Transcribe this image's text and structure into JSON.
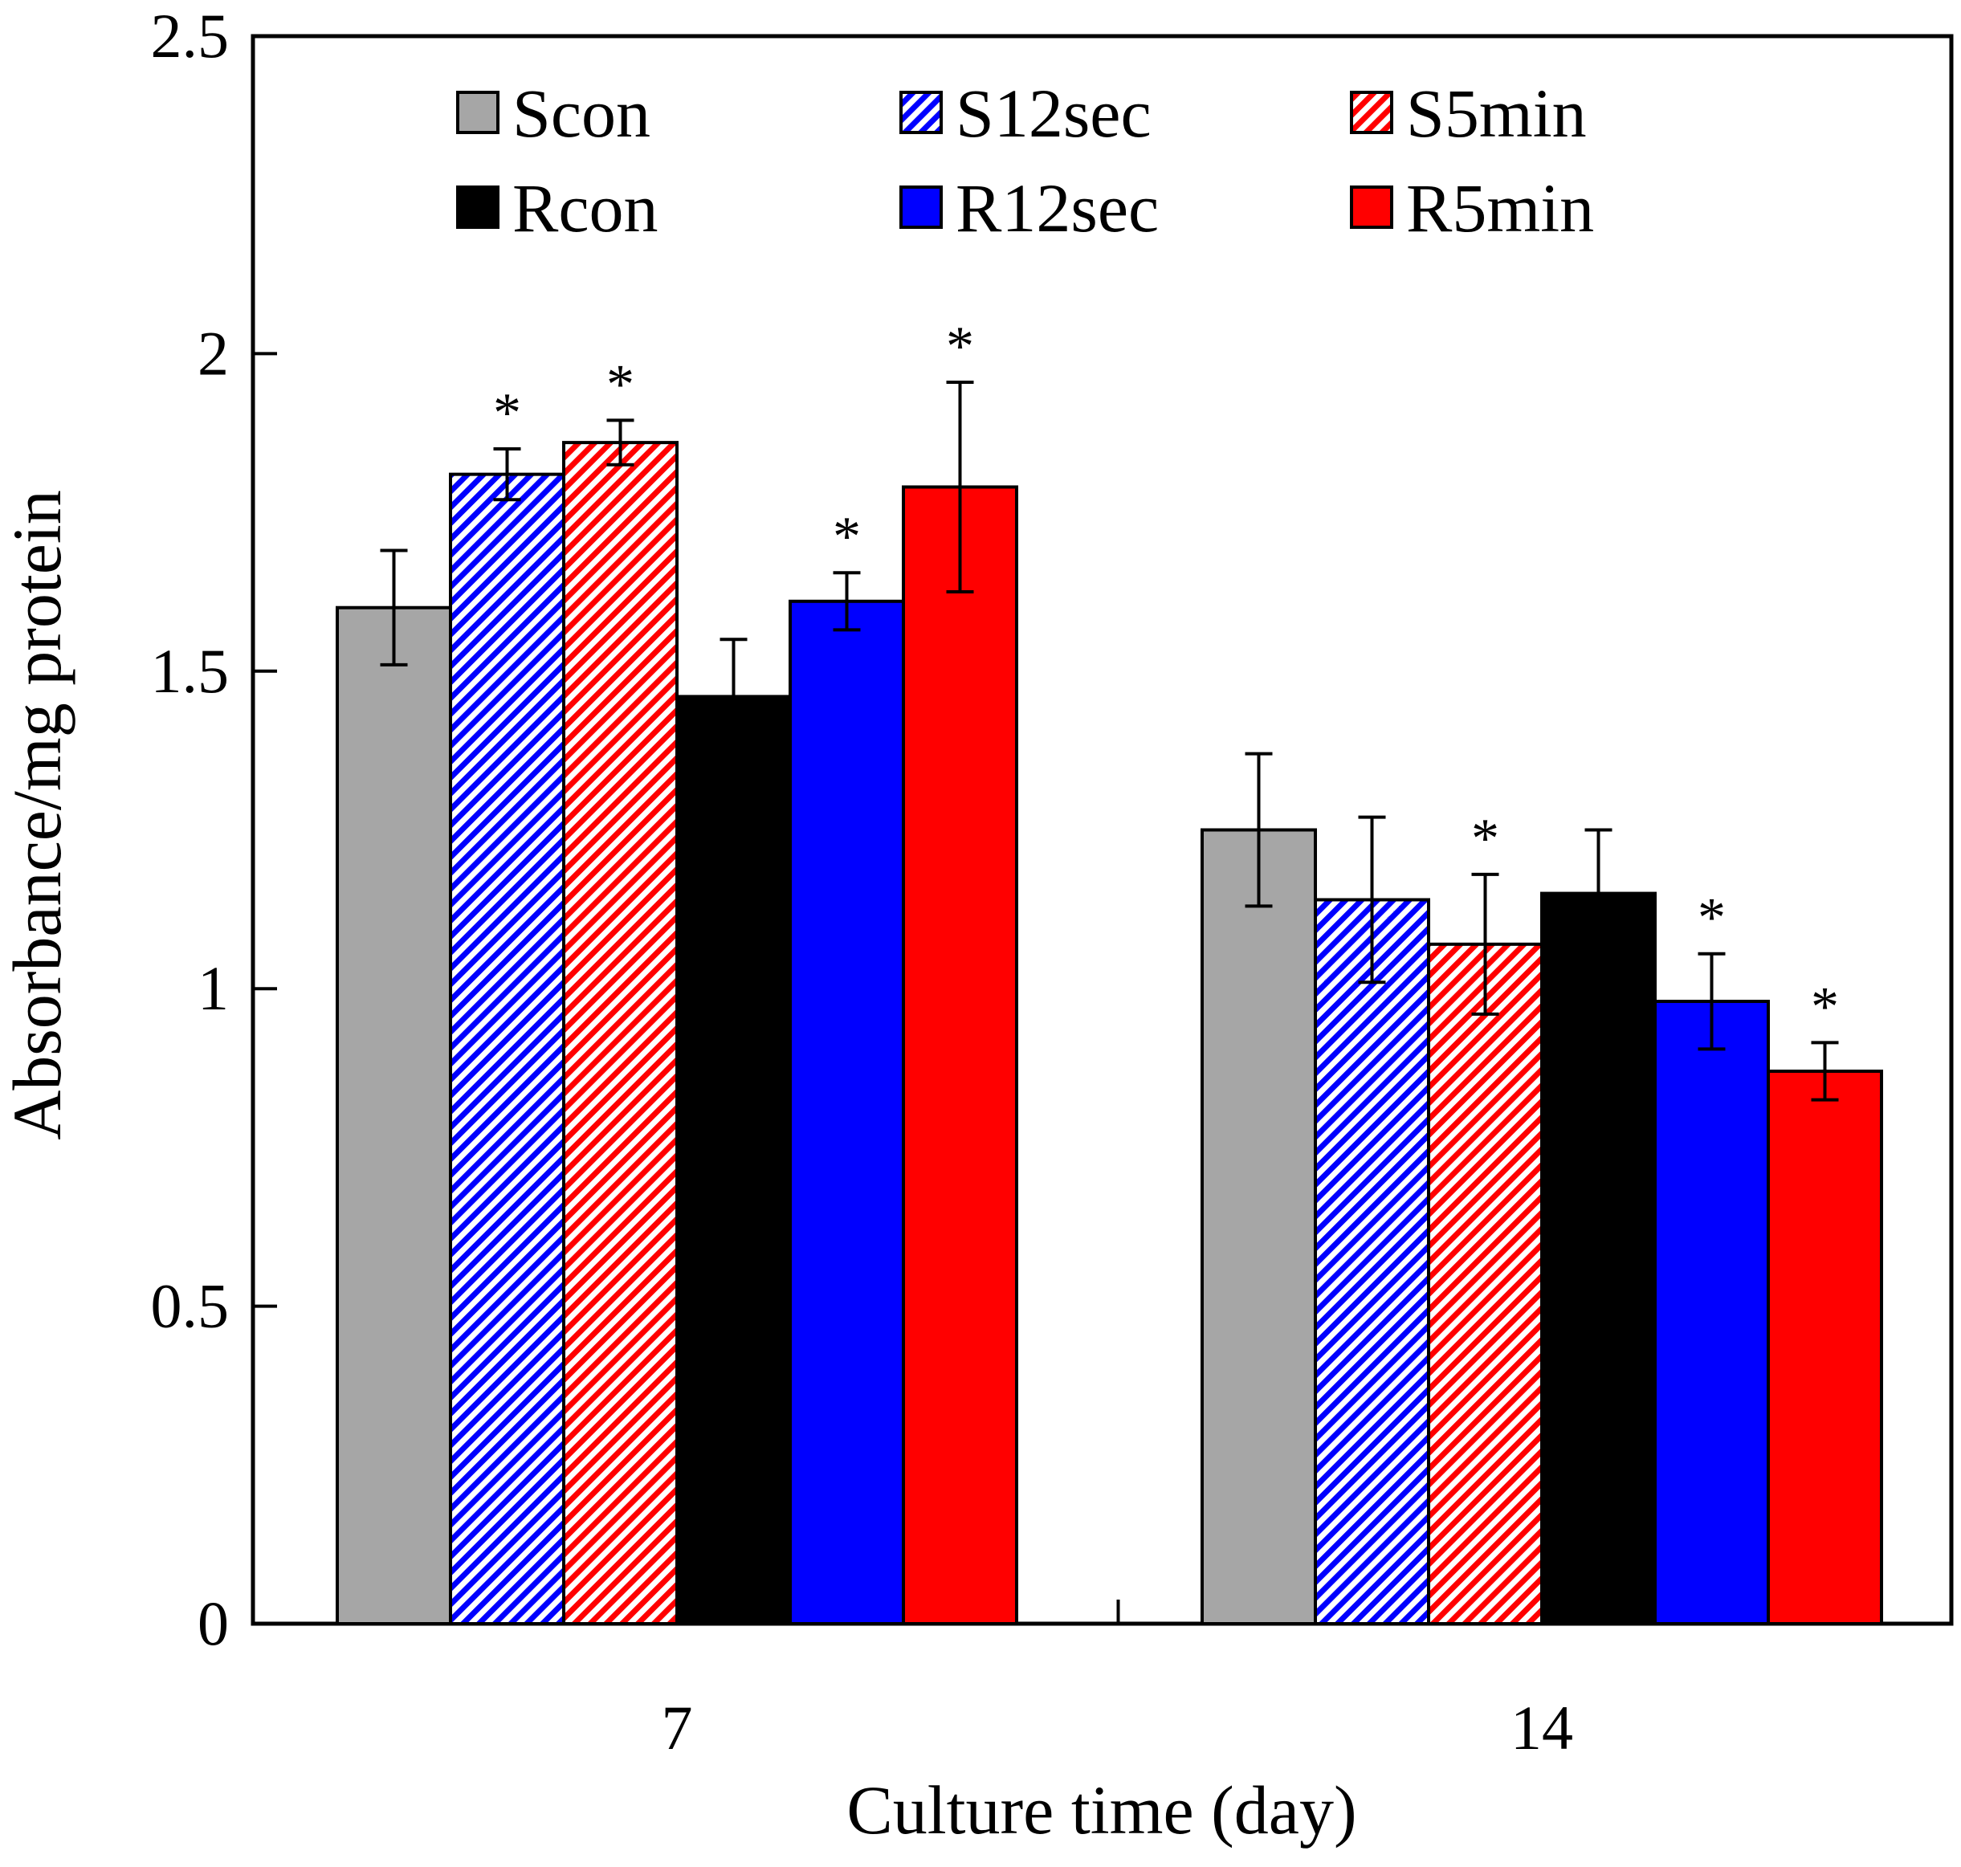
{
  "chart_data": {
    "type": "bar",
    "title": "",
    "xlabel": "Culture time (day)",
    "ylabel": "Absorbance/mg protein",
    "categories": [
      "7",
      "14"
    ],
    "ylim": [
      0,
      2.5
    ],
    "yticks": [
      "0",
      "0.5",
      "1",
      "1.5",
      "2",
      "2.5"
    ],
    "legend_position": "top",
    "grid": false,
    "series": [
      {
        "name": "Scon",
        "color": "#a6a6a6",
        "pattern": "solid",
        "values": [
          1.6,
          1.25
        ],
        "errors": [
          0.09,
          0.12
        ],
        "significant": [
          false,
          false
        ]
      },
      {
        "name": "S12sec",
        "color": "#0000ff",
        "pattern": "hatched",
        "values": [
          1.81,
          1.14
        ],
        "errors": [
          0.04,
          0.13
        ],
        "significant": [
          true,
          false
        ]
      },
      {
        "name": "S5min",
        "color": "#ff0000",
        "pattern": "hatched",
        "values": [
          1.86,
          1.07
        ],
        "errors": [
          0.035,
          0.11
        ],
        "significant": [
          true,
          true
        ]
      },
      {
        "name": "Rcon",
        "color": "#000000",
        "pattern": "solid",
        "values": [
          1.46,
          1.15
        ],
        "errors": [
          0.09,
          0.1
        ],
        "significant": [
          false,
          false
        ]
      },
      {
        "name": "R12sec",
        "color": "#0000ff",
        "pattern": "solid",
        "values": [
          1.61,
          0.98
        ],
        "errors": [
          0.045,
          0.075
        ],
        "significant": [
          true,
          true
        ]
      },
      {
        "name": "R5min",
        "color": "#ff0000",
        "pattern": "solid",
        "values": [
          1.79,
          0.87
        ],
        "errors": [
          0.165,
          0.045
        ],
        "significant": [
          true,
          true
        ]
      }
    ],
    "significance_marker": "*"
  }
}
